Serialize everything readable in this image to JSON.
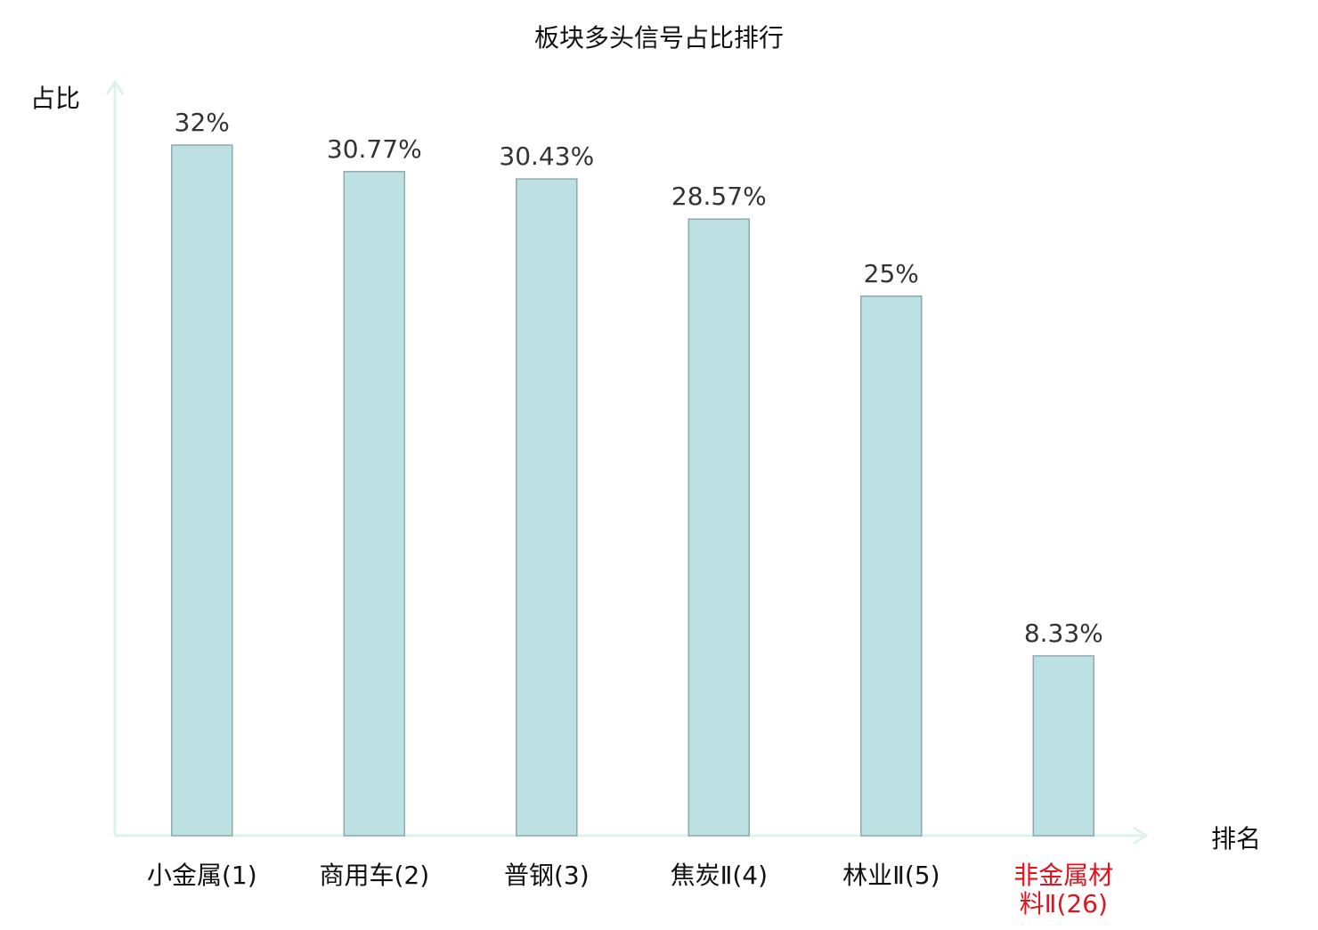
{
  "chart_data": {
    "type": "bar",
    "title": "板块多头信号占比排行",
    "ylabel": "占比",
    "xlabel": "排名",
    "ylim": [
      0,
      32
    ],
    "grid": false,
    "legend": "none",
    "categories": [
      "小金属(1)",
      "商用车(2)",
      "普钢(3)",
      "焦炭Ⅱ(4)",
      "林业Ⅱ(5)",
      "非金属材料Ⅱ(26)"
    ],
    "category_lines": [
      [
        "小金属(1)"
      ],
      [
        "商用车(2)"
      ],
      [
        "普钢(3)"
      ],
      [
        "焦炭Ⅱ(4)"
      ],
      [
        "林业Ⅱ(5)"
      ],
      [
        "非金属材",
        "料Ⅱ(26)"
      ]
    ],
    "values": [
      32,
      30.77,
      30.43,
      28.57,
      25,
      8.33
    ],
    "value_labels": [
      "32%",
      "30.77%",
      "30.43%",
      "28.57%",
      "25%",
      "8.33%"
    ],
    "highlight_index": 5,
    "colors": {
      "bar_fill": "#bde0e3",
      "bar_stroke": "#8fa9ab",
      "axis": "#dff1ef",
      "highlight_text": "#e0141e",
      "label_text": "#333333"
    }
  }
}
